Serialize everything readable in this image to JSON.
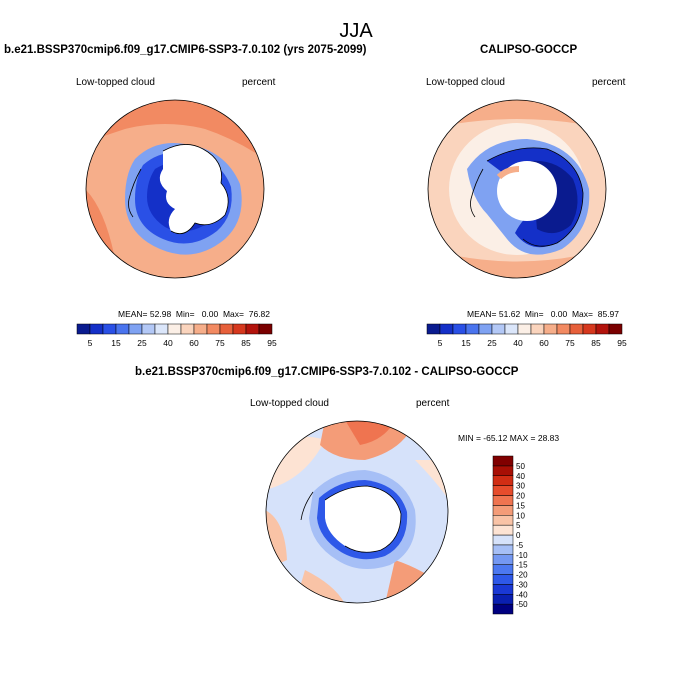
{
  "figure": {
    "season": "JJA"
  },
  "panels": [
    {
      "title": "b.e21.BSSP370cmip6.f09_g17.CMIP6-SSP3-7.0.102 (yrs 2075-2099)",
      "variable": "Low-topped cloud",
      "units": "percent",
      "stats": {
        "mean_label": "MEAN=",
        "mean": "52.98",
        "min_label": "Min=",
        "min": "0.00",
        "max_label": "Max=",
        "max": "76.82"
      }
    },
    {
      "title": "CALIPSO-GOCCP",
      "variable": "Low-topped cloud",
      "units": "percent",
      "stats": {
        "mean_label": "MEAN=",
        "mean": "51.62",
        "min_label": "Min=",
        "min": "0.00",
        "max_label": "Max=",
        "max": "85.97"
      }
    },
    {
      "title": "b.e21.BSSP370cmip6.f09_g17.CMIP6-SSP3-7.0.102 - CALIPSO-GOCCP",
      "variable": "Low-topped cloud",
      "units": "percent",
      "minmax_text": "MIN = -65.12  MAX =  28.83"
    }
  ],
  "colorbar_abs": {
    "colors": [
      "#0a1b8f",
      "#1430c8",
      "#2a50e6",
      "#4a74ee",
      "#7fa2f2",
      "#b3c8f6",
      "#dbe6fa",
      "#fbefe6",
      "#fad4bd",
      "#f6ae8a",
      "#f28a62",
      "#e7603b",
      "#d6381e",
      "#b3130c",
      "#7a0000"
    ],
    "tick_labels": [
      "5",
      "15",
      "25",
      "40",
      "60",
      "75",
      "85",
      "95"
    ]
  },
  "colorbar_diff": {
    "colors": [
      "#000080",
      "#0a1fb0",
      "#1a38d4",
      "#2e58e8",
      "#4c78f0",
      "#7498f2",
      "#a6bff6",
      "#d6e2fa",
      "#fde3d3",
      "#f9c3a6",
      "#f49c78",
      "#ef7450",
      "#e64c2c",
      "#d12d14",
      "#a80f05",
      "#800000"
    ],
    "tick_labels": [
      "50",
      "40",
      "30",
      "20",
      "15",
      "10",
      "5",
      "0",
      "-5",
      "-10",
      "-15",
      "-20",
      "-30",
      "-40",
      "-50"
    ]
  }
}
